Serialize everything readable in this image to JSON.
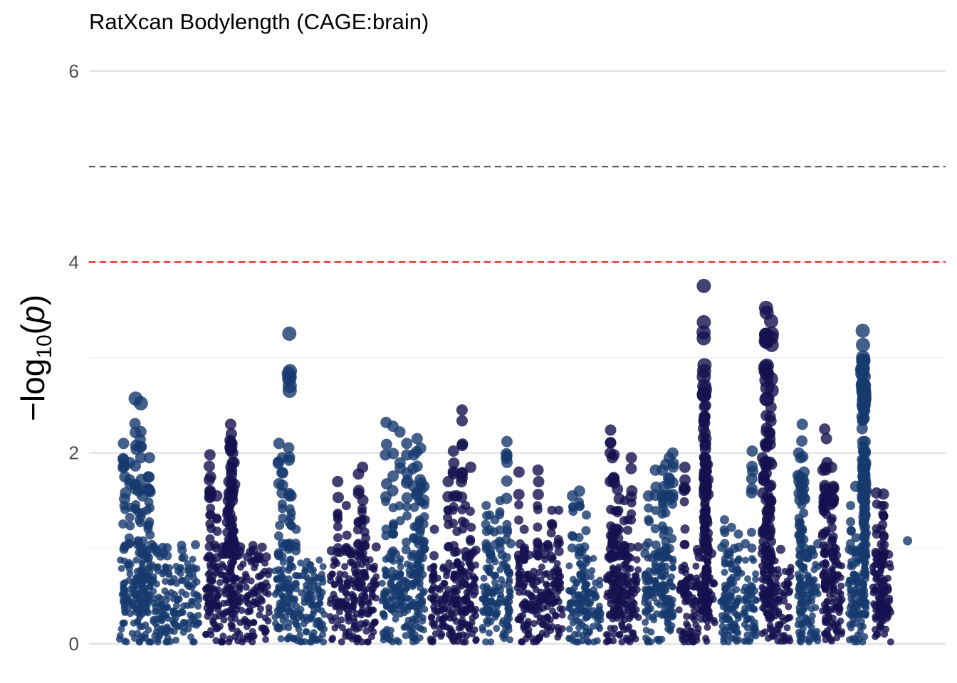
{
  "chart_data": {
    "type": "scatter",
    "title": "RatXcan Bodylength (CAGE:brain)",
    "xlabel": "",
    "ylabel": {
      "prefix": "−log",
      "subscript": "10",
      "open": "(",
      "var": "p",
      "close": ")"
    },
    "ylim": [
      0,
      6
    ],
    "yticks": [
      0,
      2,
      4,
      6
    ],
    "grid": true,
    "legend": "none",
    "thresholds": [
      {
        "value": 5,
        "color": "#555555"
      },
      {
        "value": 4,
        "color": "#ee1111"
      }
    ],
    "colors": {
      "odd_chrom": "#173a6e",
      "even_chrom": "#15104f"
    },
    "chromosomes": [
      {
        "id": 1,
        "start": 0,
        "end": 250,
        "mean": 0.55,
        "sd": 0.32,
        "peaks": [
          [
            20,
            2.1
          ],
          [
            24,
            1.75
          ],
          [
            38,
            1.9
          ],
          [
            55,
            2.57
          ],
          [
            70,
            2.52
          ],
          [
            64,
            1.6
          ],
          [
            75,
            1.55
          ],
          [
            95,
            1.95
          ],
          [
            92,
            1.75
          ],
          [
            88,
            1.4
          ]
        ]
      },
      {
        "id": 2,
        "start": 250,
        "end": 450,
        "mean": 0.6,
        "sd": 0.35,
        "peaks": [
          [
            270,
            1.98
          ],
          [
            272,
            1.75
          ],
          [
            290,
            1.55
          ],
          [
            330,
            2.3
          ],
          [
            332,
            2.2
          ],
          [
            334,
            2.1
          ],
          [
            336,
            2.0
          ],
          [
            340,
            1.9
          ],
          [
            320,
            1.5
          ],
          [
            325,
            1.7
          ]
        ]
      },
      {
        "id": 3,
        "start": 450,
        "end": 610,
        "mean": 0.5,
        "sd": 0.28,
        "peaks": [
          [
            470,
            2.1
          ],
          [
            480,
            1.95
          ],
          [
            500,
            3.25
          ],
          [
            505,
            1.55
          ],
          [
            520,
            1.2
          ]
        ]
      },
      {
        "id": 4,
        "start": 610,
        "end": 760,
        "mean": 0.55,
        "sd": 0.3,
        "peaks": [
          [
            640,
            1.7
          ],
          [
            665,
            1.45
          ],
          [
            700,
            1.78
          ],
          [
            712,
            1.85
          ],
          [
            720,
            1.3
          ]
        ]
      },
      {
        "id": 5,
        "start": 760,
        "end": 900,
        "mean": 0.55,
        "sd": 0.3,
        "peaks": [
          [
            780,
            2.32
          ],
          [
            800,
            2.28
          ],
          [
            820,
            2.22
          ],
          [
            840,
            2.1
          ],
          [
            860,
            1.98
          ],
          [
            870,
            2.15
          ],
          [
            880,
            2.05
          ],
          [
            890,
            1.65
          ],
          [
            875,
            1.5
          ]
        ]
      },
      {
        "id": 6,
        "start": 900,
        "end": 1050,
        "mean": 0.5,
        "sd": 0.3,
        "peaks": [
          [
            920,
            1.2
          ],
          [
            960,
            1.7
          ],
          [
            975,
            2.02
          ],
          [
            985,
            1.55
          ],
          [
            1000,
            2.45
          ],
          [
            1025,
            1.85
          ],
          [
            1010,
            1.45
          ]
        ]
      },
      {
        "id": 7,
        "start": 1050,
        "end": 1150,
        "mean": 0.5,
        "sd": 0.28,
        "peaks": [
          [
            1070,
            1.45
          ],
          [
            1080,
            1.35
          ],
          [
            1095,
            1.3
          ],
          [
            1110,
            1.5
          ],
          [
            1130,
            2.12
          ]
        ]
      },
      {
        "id": 8,
        "start": 1150,
        "end": 1300,
        "mean": 0.55,
        "sd": 0.3,
        "peaks": [
          [
            1165,
            1.8
          ],
          [
            1180,
            1.2
          ],
          [
            1220,
            1.82
          ],
          [
            1260,
            1.4
          ],
          [
            1280,
            1.4
          ]
        ]
      },
      {
        "id": 9,
        "start": 1300,
        "end": 1410,
        "mean": 0.5,
        "sd": 0.28,
        "peaks": [
          [
            1320,
            1.55
          ],
          [
            1340,
            1.6
          ],
          [
            1360,
            1.35
          ]
        ]
      },
      {
        "id": 10,
        "start": 1410,
        "end": 1520,
        "mean": 0.6,
        "sd": 0.33,
        "peaks": [
          [
            1430,
            2.24
          ],
          [
            1435,
            1.95
          ],
          [
            1440,
            1.98
          ],
          [
            1450,
            1.62
          ],
          [
            1455,
            1.52
          ],
          [
            1470,
            1.5
          ],
          [
            1490,
            1.95
          ],
          [
            1480,
            1.3
          ]
        ]
      },
      {
        "id": 11,
        "start": 1520,
        "end": 1620,
        "mean": 0.55,
        "sd": 0.3,
        "peaks": [
          [
            1540,
            1.55
          ],
          [
            1560,
            1.82
          ],
          [
            1580,
            1.82
          ],
          [
            1590,
            1.88
          ],
          [
            1600,
            1.95
          ],
          [
            1610,
            2.0
          ],
          [
            1585,
            1.65
          ]
        ]
      },
      {
        "id": 12,
        "start": 1620,
        "end": 1740,
        "mean": 0.5,
        "sd": 0.3,
        "peaks": [
          [
            1645,
            1.85
          ],
          [
            1700,
            3.75
          ],
          [
            1702,
            2.92
          ],
          [
            1705,
            2.5
          ],
          [
            1703,
            2.38
          ],
          [
            1706,
            2.15
          ],
          [
            1704,
            2.08
          ],
          [
            1710,
            1.88
          ],
          [
            1712,
            1.72
          ],
          [
            1708,
            1.65
          ]
        ]
      },
      {
        "id": 13,
        "start": 1740,
        "end": 1860,
        "mean": 0.45,
        "sd": 0.28,
        "peaks": [
          [
            1760,
            1.3
          ],
          [
            1780,
            1.22
          ],
          [
            1800,
            1.15
          ],
          [
            1820,
            1.05
          ],
          [
            1840,
            2.02
          ]
        ]
      },
      {
        "id": 14,
        "start": 1860,
        "end": 1960,
        "mean": 0.55,
        "sd": 0.32,
        "peaks": [
          [
            1870,
            1.95
          ],
          [
            1880,
            3.52
          ],
          [
            1882,
            3.47
          ],
          [
            1895,
            3.38
          ],
          [
            1892,
            2.38
          ],
          [
            1890,
            1.65
          ],
          [
            1885,
            1.55
          ],
          [
            1875,
            1.9
          ]
        ]
      },
      {
        "id": 15,
        "start": 1960,
        "end": 2040,
        "mean": 0.6,
        "sd": 0.33,
        "peaks": [
          [
            1975,
            2.0
          ],
          [
            1985,
            2.3
          ],
          [
            1980,
            1.95
          ],
          [
            1990,
            1.8
          ],
          [
            1978,
            1.75
          ]
        ]
      },
      {
        "id": 16,
        "start": 2040,
        "end": 2110,
        "mean": 0.55,
        "sd": 0.32,
        "peaks": [
          [
            2050,
            2.25
          ],
          [
            2055,
            2.15
          ],
          [
            2045,
            1.82
          ],
          [
            2070,
            1.85
          ],
          [
            2075,
            1.65
          ],
          [
            2076,
            1.63
          ]
        ]
      },
      {
        "id": 17,
        "start": 2110,
        "end": 2180,
        "mean": 0.5,
        "sd": 0.3,
        "peaks": [
          [
            2125,
            1.45
          ],
          [
            2140,
            1.65
          ],
          [
            2160,
            3.28
          ],
          [
            2161,
            3.0
          ],
          [
            2162,
            2.97
          ],
          [
            2163,
            2.8
          ],
          [
            2164,
            2.65
          ],
          [
            2165,
            2.57
          ],
          [
            2166,
            2.5
          ],
          [
            2167,
            2.0
          ],
          [
            2168,
            1.9
          ],
          [
            2170,
            1.35
          ]
        ]
      },
      {
        "id": 18,
        "start": 2180,
        "end": 2250,
        "mean": 0.5,
        "sd": 0.28,
        "peaks": [
          [
            2200,
            1.58
          ],
          [
            2215,
            1.45
          ],
          [
            2220,
            1.57
          ],
          [
            2222,
            1.45
          ],
          [
            2218,
            1.25
          ]
        ]
      },
      {
        "id": 19,
        "start": 2250,
        "end": 2270,
        "mean": 0.4,
        "sd": 0.2,
        "peaks": [],
        "n": 0
      }
    ],
    "extra_points": [
      [
        2290,
        1.08
      ]
    ],
    "xlim": [
      -80,
      2400
    ]
  }
}
